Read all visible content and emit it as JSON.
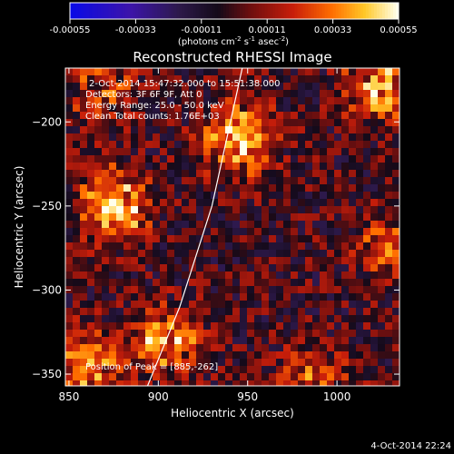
{
  "chart_data": {
    "type": "heatmap",
    "title": "Reconstructed RHESSI Image",
    "xlabel": "Heliocentric X (arcsec)",
    "ylabel": "Heliocentric Y (arcsec)",
    "xlim": [
      848,
      1035
    ],
    "ylim": [
      -357,
      -168
    ],
    "xticks": [
      850,
      900,
      950,
      1000
    ],
    "yticks": [
      -200,
      -250,
      -300,
      -350
    ],
    "colorbar": {
      "min": -0.00055,
      "max": 0.00055,
      "ticks": [
        "-0.00055",
        "-0.00033",
        "-0.00011",
        "0.00011",
        "0.00033",
        "0.00055"
      ],
      "unit_main": "(photons cm",
      "unit_s1": "-2",
      "unit_mid": " s",
      "unit_s2": "-1",
      "unit_mid2": " asec",
      "unit_s3": "-2",
      "unit_end": ")"
    },
    "annotations": {
      "time_range": "2-Oct-2014 15:47:32.000 to 15:51:38.000",
      "detectors": "Detectors: 3F 6F 9F, Att 0",
      "energy": "Energy Range: 25.0 - 50.0 keV",
      "clean": "Clean    Total counts: 1.76E+03",
      "peak": "Position of Peak = [885,-262]"
    },
    "sources": [
      {
        "x": 945,
        "y": -210,
        "value": 0.0005
      },
      {
        "x": 875,
        "y": -250,
        "value": 0.00052
      },
      {
        "x": 1025,
        "y": -180,
        "value": 0.00045
      },
      {
        "x": 905,
        "y": -330,
        "value": 0.00042
      },
      {
        "x": 860,
        "y": -345,
        "value": 0.0004
      },
      {
        "x": 1030,
        "y": -275,
        "value": 0.0003
      },
      {
        "x": 985,
        "y": -355,
        "value": 0.00028
      },
      {
        "x": 870,
        "y": -180,
        "value": 0.00025
      }
    ],
    "limb": [
      [
        894,
        -357
      ],
      [
        912,
        -310
      ],
      [
        930,
        -250
      ],
      [
        947,
        -168
      ]
    ]
  },
  "footer": {
    "date": "4-Oct-2014 22:24"
  }
}
